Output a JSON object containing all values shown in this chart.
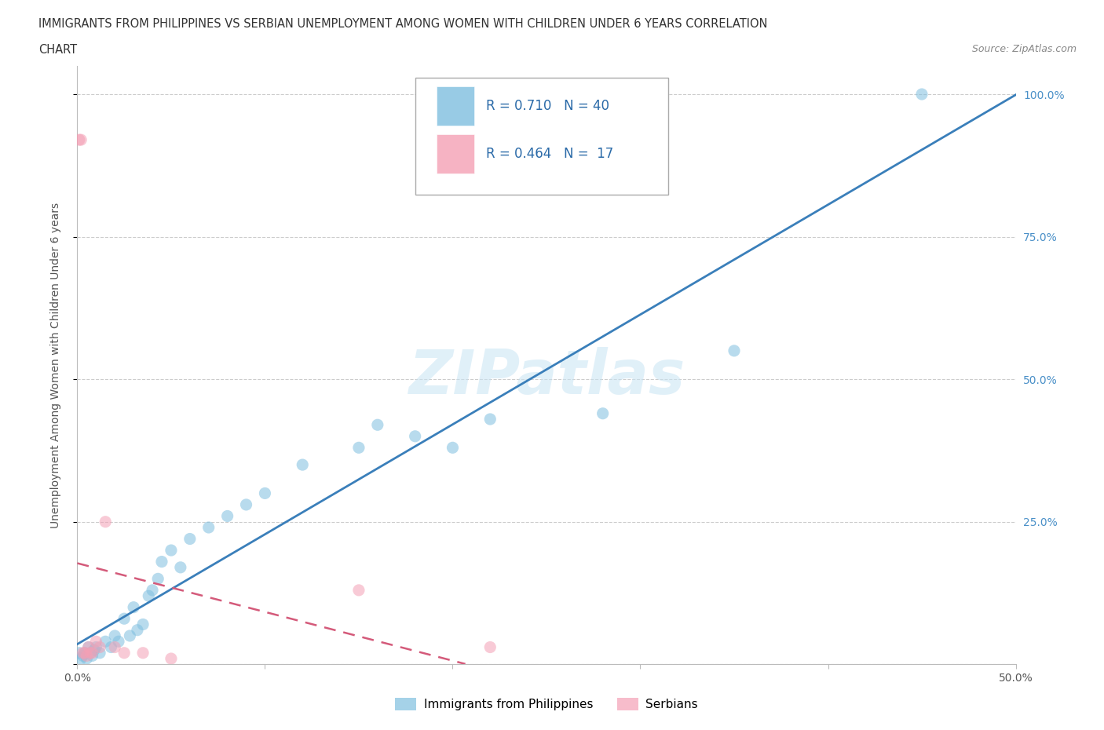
{
  "title_line1": "IMMIGRANTS FROM PHILIPPINES VS SERBIAN UNEMPLOYMENT AMONG WOMEN WITH CHILDREN UNDER 6 YEARS CORRELATION",
  "title_line2": "CHART",
  "source": "Source: ZipAtlas.com",
  "ylabel": "Unemployment Among Women with Children Under 6 years",
  "xlim": [
    0.0,
    0.5
  ],
  "ylim": [
    0.0,
    1.05
  ],
  "grid_color": "#cccccc",
  "watermark": "ZIPatlas",
  "blue_color": "#7fbfdf",
  "pink_color": "#f4a0b5",
  "blue_line_color": "#3a7fba",
  "pink_line_color": "#d45a7a",
  "R_blue": 0.71,
  "N_blue": 40,
  "R_pink": 0.464,
  "N_pink": 17,
  "blue_scatter_x": [
    0.001,
    0.002,
    0.003,
    0.004,
    0.005,
    0.006,
    0.007,
    0.008,
    0.009,
    0.01,
    0.012,
    0.015,
    0.018,
    0.02,
    0.022,
    0.025,
    0.028,
    0.03,
    0.032,
    0.035,
    0.038,
    0.04,
    0.043,
    0.045,
    0.05,
    0.055,
    0.06,
    0.07,
    0.08,
    0.09,
    0.1,
    0.12,
    0.15,
    0.16,
    0.18,
    0.2,
    0.22,
    0.28,
    0.35,
    0.45
  ],
  "blue_scatter_y": [
    0.02,
    0.01,
    0.015,
    0.02,
    0.01,
    0.03,
    0.02,
    0.015,
    0.025,
    0.03,
    0.02,
    0.04,
    0.03,
    0.05,
    0.04,
    0.08,
    0.05,
    0.1,
    0.06,
    0.07,
    0.12,
    0.13,
    0.15,
    0.18,
    0.2,
    0.17,
    0.22,
    0.24,
    0.26,
    0.28,
    0.3,
    0.35,
    0.38,
    0.42,
    0.4,
    0.38,
    0.43,
    0.44,
    0.55,
    1.0
  ],
  "pink_scatter_x": [
    0.001,
    0.002,
    0.003,
    0.004,
    0.005,
    0.006,
    0.007,
    0.008,
    0.01,
    0.012,
    0.015,
    0.02,
    0.025,
    0.035,
    0.05,
    0.15,
    0.22
  ],
  "pink_scatter_y": [
    0.92,
    0.92,
    0.02,
    0.02,
    0.015,
    0.03,
    0.02,
    0.02,
    0.04,
    0.03,
    0.25,
    0.03,
    0.02,
    0.02,
    0.01,
    0.13,
    0.03
  ],
  "legend_label_blue": "Immigrants from Philippines",
  "legend_label_pink": "Serbians",
  "background_color": "#ffffff",
  "title_color": "#333333",
  "axis_label_color": "#555555",
  "tick_color_right": "#4a90c8",
  "source_color": "#888888"
}
